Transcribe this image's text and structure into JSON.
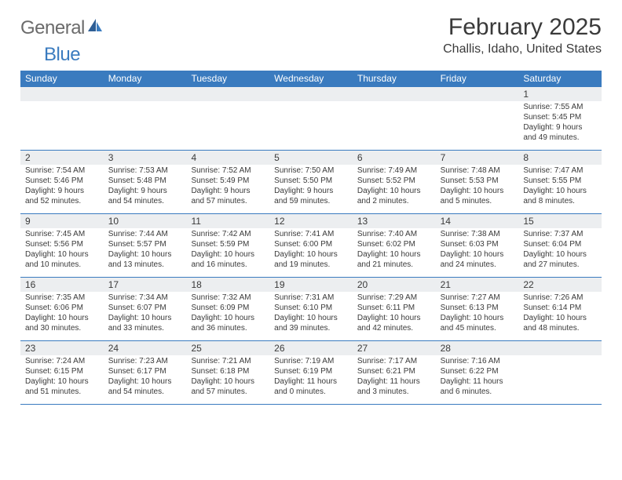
{
  "logo": {
    "word1": "General",
    "word2": "Blue"
  },
  "title": "February 2025",
  "location": "Challis, Idaho, United States",
  "colors": {
    "header_bg": "#3a7bbf",
    "header_text": "#ffffff",
    "daynum_bg": "#eceef0",
    "rule": "#3a7bbf",
    "text": "#3a3a3a",
    "logo_gray": "#6b6b6b",
    "logo_blue": "#3a7bbf"
  },
  "day_headers": [
    "Sunday",
    "Monday",
    "Tuesday",
    "Wednesday",
    "Thursday",
    "Friday",
    "Saturday"
  ],
  "weeks": [
    [
      {
        "n": "",
        "sr": "",
        "ss": "",
        "dl1": "",
        "dl2": ""
      },
      {
        "n": "",
        "sr": "",
        "ss": "",
        "dl1": "",
        "dl2": ""
      },
      {
        "n": "",
        "sr": "",
        "ss": "",
        "dl1": "",
        "dl2": ""
      },
      {
        "n": "",
        "sr": "",
        "ss": "",
        "dl1": "",
        "dl2": ""
      },
      {
        "n": "",
        "sr": "",
        "ss": "",
        "dl1": "",
        "dl2": ""
      },
      {
        "n": "",
        "sr": "",
        "ss": "",
        "dl1": "",
        "dl2": ""
      },
      {
        "n": "1",
        "sr": "Sunrise: 7:55 AM",
        "ss": "Sunset: 5:45 PM",
        "dl1": "Daylight: 9 hours",
        "dl2": "and 49 minutes."
      }
    ],
    [
      {
        "n": "2",
        "sr": "Sunrise: 7:54 AM",
        "ss": "Sunset: 5:46 PM",
        "dl1": "Daylight: 9 hours",
        "dl2": "and 52 minutes."
      },
      {
        "n": "3",
        "sr": "Sunrise: 7:53 AM",
        "ss": "Sunset: 5:48 PM",
        "dl1": "Daylight: 9 hours",
        "dl2": "and 54 minutes."
      },
      {
        "n": "4",
        "sr": "Sunrise: 7:52 AM",
        "ss": "Sunset: 5:49 PM",
        "dl1": "Daylight: 9 hours",
        "dl2": "and 57 minutes."
      },
      {
        "n": "5",
        "sr": "Sunrise: 7:50 AM",
        "ss": "Sunset: 5:50 PM",
        "dl1": "Daylight: 9 hours",
        "dl2": "and 59 minutes."
      },
      {
        "n": "6",
        "sr": "Sunrise: 7:49 AM",
        "ss": "Sunset: 5:52 PM",
        "dl1": "Daylight: 10 hours",
        "dl2": "and 2 minutes."
      },
      {
        "n": "7",
        "sr": "Sunrise: 7:48 AM",
        "ss": "Sunset: 5:53 PM",
        "dl1": "Daylight: 10 hours",
        "dl2": "and 5 minutes."
      },
      {
        "n": "8",
        "sr": "Sunrise: 7:47 AM",
        "ss": "Sunset: 5:55 PM",
        "dl1": "Daylight: 10 hours",
        "dl2": "and 8 minutes."
      }
    ],
    [
      {
        "n": "9",
        "sr": "Sunrise: 7:45 AM",
        "ss": "Sunset: 5:56 PM",
        "dl1": "Daylight: 10 hours",
        "dl2": "and 10 minutes."
      },
      {
        "n": "10",
        "sr": "Sunrise: 7:44 AM",
        "ss": "Sunset: 5:57 PM",
        "dl1": "Daylight: 10 hours",
        "dl2": "and 13 minutes."
      },
      {
        "n": "11",
        "sr": "Sunrise: 7:42 AM",
        "ss": "Sunset: 5:59 PM",
        "dl1": "Daylight: 10 hours",
        "dl2": "and 16 minutes."
      },
      {
        "n": "12",
        "sr": "Sunrise: 7:41 AM",
        "ss": "Sunset: 6:00 PM",
        "dl1": "Daylight: 10 hours",
        "dl2": "and 19 minutes."
      },
      {
        "n": "13",
        "sr": "Sunrise: 7:40 AM",
        "ss": "Sunset: 6:02 PM",
        "dl1": "Daylight: 10 hours",
        "dl2": "and 21 minutes."
      },
      {
        "n": "14",
        "sr": "Sunrise: 7:38 AM",
        "ss": "Sunset: 6:03 PM",
        "dl1": "Daylight: 10 hours",
        "dl2": "and 24 minutes."
      },
      {
        "n": "15",
        "sr": "Sunrise: 7:37 AM",
        "ss": "Sunset: 6:04 PM",
        "dl1": "Daylight: 10 hours",
        "dl2": "and 27 minutes."
      }
    ],
    [
      {
        "n": "16",
        "sr": "Sunrise: 7:35 AM",
        "ss": "Sunset: 6:06 PM",
        "dl1": "Daylight: 10 hours",
        "dl2": "and 30 minutes."
      },
      {
        "n": "17",
        "sr": "Sunrise: 7:34 AM",
        "ss": "Sunset: 6:07 PM",
        "dl1": "Daylight: 10 hours",
        "dl2": "and 33 minutes."
      },
      {
        "n": "18",
        "sr": "Sunrise: 7:32 AM",
        "ss": "Sunset: 6:09 PM",
        "dl1": "Daylight: 10 hours",
        "dl2": "and 36 minutes."
      },
      {
        "n": "19",
        "sr": "Sunrise: 7:31 AM",
        "ss": "Sunset: 6:10 PM",
        "dl1": "Daylight: 10 hours",
        "dl2": "and 39 minutes."
      },
      {
        "n": "20",
        "sr": "Sunrise: 7:29 AM",
        "ss": "Sunset: 6:11 PM",
        "dl1": "Daylight: 10 hours",
        "dl2": "and 42 minutes."
      },
      {
        "n": "21",
        "sr": "Sunrise: 7:27 AM",
        "ss": "Sunset: 6:13 PM",
        "dl1": "Daylight: 10 hours",
        "dl2": "and 45 minutes."
      },
      {
        "n": "22",
        "sr": "Sunrise: 7:26 AM",
        "ss": "Sunset: 6:14 PM",
        "dl1": "Daylight: 10 hours",
        "dl2": "and 48 minutes."
      }
    ],
    [
      {
        "n": "23",
        "sr": "Sunrise: 7:24 AM",
        "ss": "Sunset: 6:15 PM",
        "dl1": "Daylight: 10 hours",
        "dl2": "and 51 minutes."
      },
      {
        "n": "24",
        "sr": "Sunrise: 7:23 AM",
        "ss": "Sunset: 6:17 PM",
        "dl1": "Daylight: 10 hours",
        "dl2": "and 54 minutes."
      },
      {
        "n": "25",
        "sr": "Sunrise: 7:21 AM",
        "ss": "Sunset: 6:18 PM",
        "dl1": "Daylight: 10 hours",
        "dl2": "and 57 minutes."
      },
      {
        "n": "26",
        "sr": "Sunrise: 7:19 AM",
        "ss": "Sunset: 6:19 PM",
        "dl1": "Daylight: 11 hours",
        "dl2": "and 0 minutes."
      },
      {
        "n": "27",
        "sr": "Sunrise: 7:17 AM",
        "ss": "Sunset: 6:21 PM",
        "dl1": "Daylight: 11 hours",
        "dl2": "and 3 minutes."
      },
      {
        "n": "28",
        "sr": "Sunrise: 7:16 AM",
        "ss": "Sunset: 6:22 PM",
        "dl1": "Daylight: 11 hours",
        "dl2": "and 6 minutes."
      },
      {
        "n": "",
        "sr": "",
        "ss": "",
        "dl1": "",
        "dl2": ""
      }
    ]
  ]
}
